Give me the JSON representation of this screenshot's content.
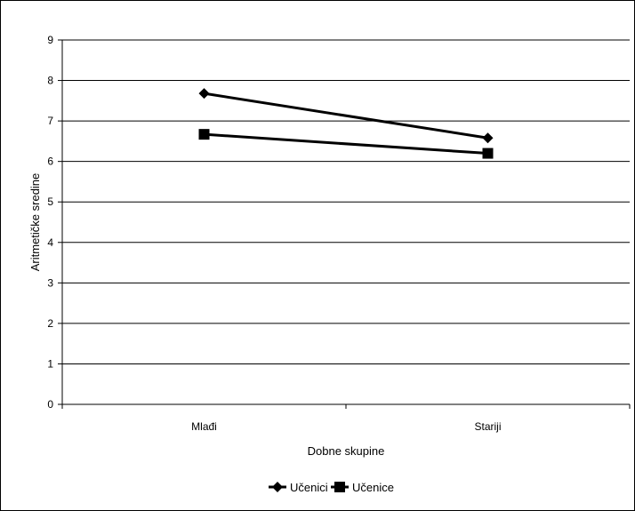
{
  "chart_data": {
    "type": "line",
    "title": "",
    "xlabel": "Dobne skupine",
    "ylabel": "Aritmetičke sredine",
    "categories": [
      "Mlađi",
      "Stariji"
    ],
    "ylim": [
      0,
      9
    ],
    "yticks": [
      0,
      1,
      2,
      3,
      4,
      5,
      6,
      7,
      8,
      9
    ],
    "grid": true,
    "legend_position": "bottom",
    "series": [
      {
        "name": "Učenici",
        "marker": "diamond",
        "values": [
          7.68,
          6.58
        ],
        "color": "#000000"
      },
      {
        "name": "Učenice",
        "marker": "square",
        "values": [
          6.67,
          6.2
        ],
        "color": "#000000"
      }
    ]
  }
}
